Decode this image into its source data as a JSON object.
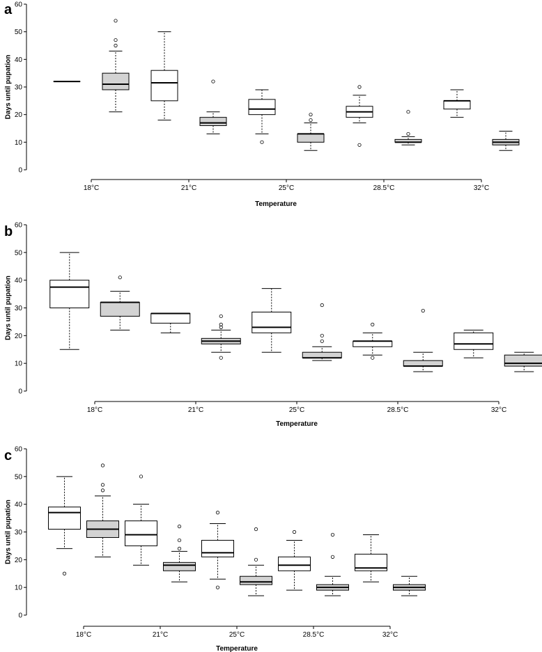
{
  "chart_data": [
    {
      "type": "boxplot",
      "panel_label": "a",
      "ylabel": "Days until pupation",
      "xlabel": "Temperature",
      "ylim": [
        0,
        60
      ],
      "yticks": [
        "0",
        "10",
        "20",
        "30",
        "40",
        "50",
        "60"
      ],
      "categories": [
        "18°C",
        "21°C",
        "25°C",
        "28.5°C",
        "32°C"
      ],
      "boxes": [
        {
          "x": 0.5,
          "fill": "#ffffff",
          "whislo": 32,
          "q1": 32,
          "med": 32,
          "q3": 32,
          "whishi": 32,
          "fliers": []
        },
        {
          "x": 1.0,
          "fill": "#d3d3d3",
          "whislo": 21,
          "q1": 29,
          "med": 31,
          "q3": 35,
          "whishi": 43,
          "fliers": [
            45,
            47,
            54
          ]
        },
        {
          "x": 1.5,
          "fill": "#ffffff",
          "whislo": 18,
          "q1": 25,
          "med": 31.5,
          "q3": 36,
          "whishi": 50,
          "fliers": []
        },
        {
          "x": 2.0,
          "fill": "#d3d3d3",
          "whislo": 13,
          "q1": 16,
          "med": 17,
          "q3": 19,
          "whishi": 21,
          "fliers": [
            32
          ]
        },
        {
          "x": 2.5,
          "fill": "#ffffff",
          "whislo": 13,
          "q1": 20,
          "med": 22,
          "q3": 25.5,
          "whishi": 29,
          "fliers": [
            10
          ]
        },
        {
          "x": 3.0,
          "fill": "#d3d3d3",
          "whislo": 7,
          "q1": 10,
          "med": 13,
          "q3": 13,
          "whishi": 17,
          "fliers": [
            18,
            20
          ]
        },
        {
          "x": 3.5,
          "fill": "#ffffff",
          "whislo": 17,
          "q1": 19,
          "med": 21,
          "q3": 23,
          "whishi": 27,
          "fliers": [
            9,
            30
          ]
        },
        {
          "x": 4.0,
          "fill": "#d3d3d3",
          "whislo": 9,
          "q1": 10,
          "med": 10,
          "q3": 11,
          "whishi": 12,
          "fliers": [
            13,
            21
          ]
        },
        {
          "x": 4.5,
          "fill": "#ffffff",
          "whislo": 19,
          "q1": 22,
          "med": 25,
          "q3": 25,
          "whishi": 29,
          "fliers": []
        },
        {
          "x": 5.0,
          "fill": "#d3d3d3",
          "whislo": 7,
          "q1": 9,
          "med": 10,
          "q3": 11,
          "whishi": 14,
          "fliers": []
        }
      ]
    },
    {
      "type": "boxplot",
      "panel_label": "b",
      "ylabel": "Days until pupation",
      "xlabel": "Temperature",
      "ylim": [
        0,
        60
      ],
      "yticks": [
        "0",
        "10",
        "20",
        "30",
        "40",
        "50",
        "60"
      ],
      "categories": [
        "18°C",
        "21°C",
        "25°C",
        "28.5°C",
        "32°C"
      ],
      "boxes": [
        {
          "x": 0.5,
          "fill": "#ffffff",
          "whislo": 15,
          "q1": 30,
          "med": 37.5,
          "q3": 40,
          "whishi": 50,
          "fliers": []
        },
        {
          "x": 1.0,
          "fill": "#d3d3d3",
          "whislo": 22,
          "q1": 27,
          "med": 32,
          "q3": 32,
          "whishi": 36,
          "fliers": [
            41
          ]
        },
        {
          "x": 1.5,
          "fill": "#ffffff",
          "whislo": 21,
          "q1": 24.5,
          "med": 28,
          "q3": 28,
          "whishi": 28,
          "fliers": []
        },
        {
          "x": 2.0,
          "fill": "#d3d3d3",
          "whislo": 14,
          "q1": 17,
          "med": 18,
          "q3": 19,
          "whishi": 22,
          "fliers": [
            12,
            23,
            24,
            27
          ]
        },
        {
          "x": 2.5,
          "fill": "#ffffff",
          "whislo": 14,
          "q1": 21,
          "med": 23,
          "q3": 28.5,
          "whishi": 37,
          "fliers": []
        },
        {
          "x": 3.0,
          "fill": "#d3d3d3",
          "whislo": 11,
          "q1": 12,
          "med": 12,
          "q3": 14,
          "whishi": 16,
          "fliers": [
            18,
            20,
            31
          ]
        },
        {
          "x": 3.5,
          "fill": "#ffffff",
          "whislo": 13,
          "q1": 16,
          "med": 18,
          "q3": 18,
          "whishi": 21,
          "fliers": [
            12,
            24
          ]
        },
        {
          "x": 4.0,
          "fill": "#d3d3d3",
          "whislo": 7,
          "q1": 9,
          "med": 9,
          "q3": 11,
          "whishi": 14,
          "fliers": [
            29
          ]
        },
        {
          "x": 4.5,
          "fill": "#ffffff",
          "whislo": 12,
          "q1": 15,
          "med": 17,
          "q3": 21,
          "whishi": 22,
          "fliers": []
        },
        {
          "x": 5.0,
          "fill": "#d3d3d3",
          "whislo": 7,
          "q1": 9,
          "med": 10,
          "q3": 13,
          "whishi": 14,
          "fliers": []
        }
      ]
    },
    {
      "type": "boxplot",
      "panel_label": "c",
      "ylabel": "Days until pupation",
      "xlabel": "Temperature",
      "ylim": [
        0,
        60
      ],
      "yticks": [
        "0",
        "10",
        "20",
        "30",
        "40",
        "50",
        "60"
      ],
      "categories": [
        "18°C",
        "21°C",
        "25°C",
        "28.5°C",
        "32°C"
      ],
      "boxes": [
        {
          "x": 0.5,
          "fill": "#ffffff",
          "whislo": 24,
          "q1": 31,
          "med": 37,
          "q3": 39,
          "whishi": 50,
          "fliers": [
            15
          ]
        },
        {
          "x": 1.0,
          "fill": "#d3d3d3",
          "whislo": 21,
          "q1": 28,
          "med": 31,
          "q3": 34,
          "whishi": 43,
          "fliers": [
            45,
            47,
            54
          ]
        },
        {
          "x": 1.5,
          "fill": "#ffffff",
          "whislo": 18,
          "q1": 25,
          "med": 29,
          "q3": 34,
          "whishi": 40,
          "fliers": [
            50
          ]
        },
        {
          "x": 2.0,
          "fill": "#d3d3d3",
          "whislo": 12,
          "q1": 16,
          "med": 18,
          "q3": 19,
          "whishi": 23,
          "fliers": [
            24,
            27,
            32
          ]
        },
        {
          "x": 2.5,
          "fill": "#ffffff",
          "whislo": 13,
          "q1": 21,
          "med": 22.5,
          "q3": 27,
          "whishi": 33,
          "fliers": [
            10,
            37
          ]
        },
        {
          "x": 3.0,
          "fill": "#d3d3d3",
          "whislo": 7,
          "q1": 11,
          "med": 12,
          "q3": 14,
          "whishi": 18,
          "fliers": [
            20,
            31
          ]
        },
        {
          "x": 3.5,
          "fill": "#ffffff",
          "whislo": 9,
          "q1": 16,
          "med": 18,
          "q3": 21,
          "whishi": 27,
          "fliers": [
            30
          ]
        },
        {
          "x": 4.0,
          "fill": "#d3d3d3",
          "whislo": 7,
          "q1": 9,
          "med": 10,
          "q3": 11,
          "whishi": 14,
          "fliers": [
            21,
            29
          ]
        },
        {
          "x": 4.5,
          "fill": "#ffffff",
          "whislo": 12,
          "q1": 16,
          "med": 17,
          "q3": 22,
          "whishi": 29,
          "fliers": []
        },
        {
          "x": 5.0,
          "fill": "#d3d3d3",
          "whislo": 7,
          "q1": 9,
          "med": 10,
          "q3": 11,
          "whishi": 14,
          "fliers": []
        }
      ]
    }
  ]
}
